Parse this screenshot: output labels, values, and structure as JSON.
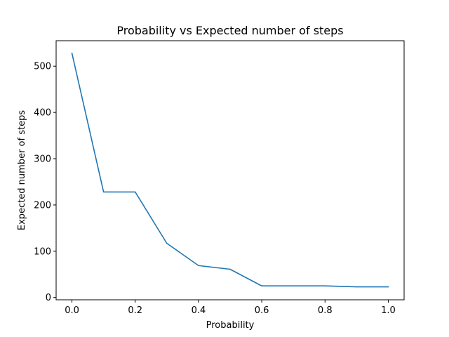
{
  "chart_data": {
    "type": "line",
    "title": "Probability vs Expected number of steps",
    "xlabel": "Probability",
    "ylabel": "Expected number of steps",
    "xlim": [
      -0.05,
      1.05
    ],
    "ylim": [
      -5,
      555
    ],
    "xticks": [
      0.0,
      0.2,
      0.4,
      0.6,
      0.8,
      1.0
    ],
    "xtick_labels": [
      "0.0",
      "0.2",
      "0.4",
      "0.6",
      "0.8",
      "1.0"
    ],
    "yticks": [
      0,
      100,
      200,
      300,
      400,
      500
    ],
    "ytick_labels": [
      "0",
      "100",
      "200",
      "300",
      "400",
      "500"
    ],
    "grid": false,
    "series": [
      {
        "color": "#1f77b4",
        "x": [
          0.0,
          0.1,
          0.2,
          0.3,
          0.4,
          0.5,
          0.6,
          0.7,
          0.8,
          0.9,
          1.0
        ],
        "y": [
          528,
          228,
          228,
          117,
          69,
          61,
          25,
          25,
          25,
          23,
          23
        ]
      }
    ]
  }
}
